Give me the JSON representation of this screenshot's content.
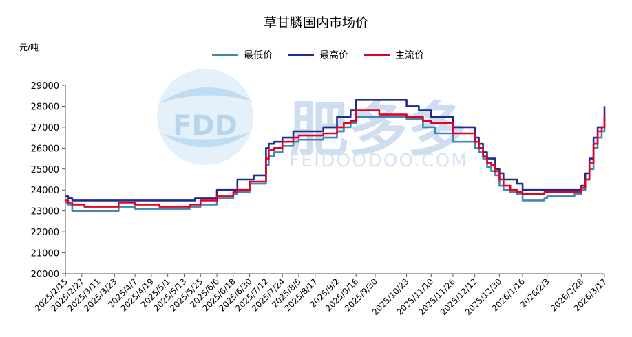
{
  "chart_data": {
    "type": "line",
    "title": "草甘膦国内市场价",
    "ylabel": "元/吨",
    "xlabel": "",
    "ylim": [
      20000,
      29000
    ],
    "yticks": [
      20000,
      21000,
      22000,
      23000,
      24000,
      25000,
      26000,
      27000,
      28000,
      29000
    ],
    "xticks": [
      "2025/2/15",
      "2025/2/27",
      "2025/3/11",
      "2025/3/23",
      "2025/4/7",
      "2025/4/19",
      "2025/5/1",
      "2025/5/13",
      "2025/5/25",
      "2025/6/6",
      "2025/6/18",
      "2025/6/30",
      "2025/7/12",
      "2025/7/24",
      "2025/8/5",
      "2025/8/17",
      "2025/9/2",
      "2025/9/16",
      "2025/9/30",
      "2025/10/23",
      "2025/11/10",
      "2025/11/26",
      "2025/12/12",
      "2025/12/30",
      "2026/1/16",
      "2026/2/3",
      "2026/2/28",
      "2026/3/17"
    ],
    "grid": false,
    "legend_position": "top",
    "watermark": {
      "logo": "FDD",
      "brand": "肥多多",
      "url": "FEIDOODOO.COM"
    },
    "series": [
      {
        "name": "最低价",
        "color": "#3f87b5",
        "x": [
          "2025/2/15",
          "2025/2/17",
          "2025/2/20",
          "2025/3/1",
          "2025/3/26",
          "2025/4/7",
          "2025/4/25",
          "2025/5/17",
          "2025/5/25",
          "2025/6/6",
          "2025/6/18",
          "2025/6/21",
          "2025/6/30",
          "2025/7/3",
          "2025/7/12",
          "2025/7/14",
          "2025/7/18",
          "2025/7/24",
          "2025/8/1",
          "2025/8/5",
          "2025/8/23",
          "2025/8/27",
          "2025/9/2",
          "2025/9/7",
          "2025/9/12",
          "2025/9/16",
          "2025/10/3",
          "2025/10/23",
          "2025/11/4",
          "2025/11/13",
          "2025/11/26",
          "2025/12/12",
          "2025/12/15",
          "2025/12/18",
          "2025/12/21",
          "2025/12/24",
          "2025/12/27",
          "2025/12/30",
          "2026/1/2",
          "2026/1/7",
          "2026/1/12",
          "2026/1/16",
          "2026/1/20",
          "2026/2/1",
          "2026/2/3",
          "2026/2/23",
          "2026/2/28",
          "2026/3/3",
          "2026/3/6",
          "2026/3/9",
          "2026/3/12",
          "2026/3/15",
          "2026/3/17"
        ],
        "values": [
          23400,
          23300,
          23000,
          23000,
          23200,
          23100,
          23100,
          23200,
          23300,
          23600,
          23800,
          23900,
          24300,
          24300,
          25200,
          25600,
          25800,
          26100,
          26300,
          26400,
          26500,
          26500,
          26800,
          27000,
          27200,
          27500,
          27500,
          27400,
          27000,
          26700,
          26300,
          26000,
          25800,
          25500,
          25100,
          24900,
          24700,
          24200,
          24000,
          23900,
          23800,
          23500,
          23500,
          23600,
          23700,
          23800,
          24000,
          24500,
          25000,
          26000,
          26500,
          26800,
          27000
        ]
      },
      {
        "name": "最高价",
        "color": "#1f2c8f",
        "x": [
          "2025/2/15",
          "2025/2/17",
          "2025/2/20",
          "2025/3/1",
          "2025/3/26",
          "2025/4/7",
          "2025/4/25",
          "2025/5/17",
          "2025/5/21",
          "2025/6/6",
          "2025/6/18",
          "2025/6/21",
          "2025/6/30",
          "2025/7/3",
          "2025/7/12",
          "2025/7/14",
          "2025/7/18",
          "2025/7/24",
          "2025/8/1",
          "2025/8/5",
          "2025/8/23",
          "2025/8/27",
          "2025/9/2",
          "2025/9/7",
          "2025/9/12",
          "2025/9/16",
          "2025/10/3",
          "2025/10/23",
          "2025/11/1",
          "2025/11/10",
          "2025/11/26",
          "2025/12/12",
          "2025/12/15",
          "2025/12/18",
          "2025/12/21",
          "2025/12/24",
          "2025/12/27",
          "2025/12/30",
          "2026/1/2",
          "2026/1/7",
          "2026/1/12",
          "2026/1/16",
          "2026/1/20",
          "2026/2/1",
          "2026/2/3",
          "2026/2/23",
          "2026/2/28",
          "2026/3/3",
          "2026/3/6",
          "2026/3/9",
          "2026/3/12",
          "2026/3/15",
          "2026/3/17"
        ],
        "values": [
          23700,
          23600,
          23500,
          23500,
          23500,
          23500,
          23500,
          23500,
          23600,
          24000,
          24000,
          24500,
          24500,
          24700,
          26000,
          26200,
          26300,
          26500,
          26800,
          26800,
          27000,
          27000,
          27500,
          27500,
          27800,
          28300,
          28300,
          28000,
          27800,
          27500,
          27000,
          26500,
          26200,
          25800,
          25500,
          25500,
          25000,
          24800,
          24500,
          24500,
          24300,
          24000,
          24000,
          24000,
          24000,
          24000,
          24200,
          24800,
          25500,
          26500,
          27000,
          27000,
          28000
        ]
      },
      {
        "name": "主流价",
        "color": "#e30022",
        "x": [
          "2025/2/15",
          "2025/2/17",
          "2025/2/20",
          "2025/3/1",
          "2025/3/26",
          "2025/4/7",
          "2025/4/25",
          "2025/5/17",
          "2025/5/25",
          "2025/6/6",
          "2025/6/18",
          "2025/6/21",
          "2025/6/30",
          "2025/7/3",
          "2025/7/12",
          "2025/7/14",
          "2025/7/18",
          "2025/7/24",
          "2025/8/1",
          "2025/8/5",
          "2025/8/23",
          "2025/8/27",
          "2025/9/2",
          "2025/9/7",
          "2025/9/12",
          "2025/9/16",
          "2025/10/3",
          "2025/10/23",
          "2025/11/4",
          "2025/11/10",
          "2025/11/26",
          "2025/12/12",
          "2025/12/15",
          "2025/12/18",
          "2025/12/21",
          "2025/12/24",
          "2025/12/27",
          "2025/12/30",
          "2026/1/2",
          "2026/1/7",
          "2026/1/12",
          "2026/1/16",
          "2026/1/20",
          "2026/2/1",
          "2026/2/3",
          "2026/2/23",
          "2026/2/28",
          "2026/3/3",
          "2026/3/6",
          "2026/3/9",
          "2026/3/12",
          "2026/3/15",
          "2026/3/17"
        ],
        "values": [
          23500,
          23400,
          23300,
          23200,
          23400,
          23300,
          23200,
          23300,
          23500,
          23700,
          23900,
          24000,
          24400,
          24400,
          25500,
          25900,
          26000,
          26300,
          26500,
          26600,
          26700,
          26700,
          27000,
          27200,
          27300,
          27800,
          27600,
          27500,
          27300,
          27200,
          26700,
          26300,
          26000,
          25600,
          25300,
          25200,
          24900,
          24500,
          24200,
          24000,
          23900,
          23800,
          23800,
          23900,
          23900,
          23900,
          24100,
          24500,
          25300,
          26200,
          26800,
          27000,
          27500
        ]
      }
    ]
  }
}
